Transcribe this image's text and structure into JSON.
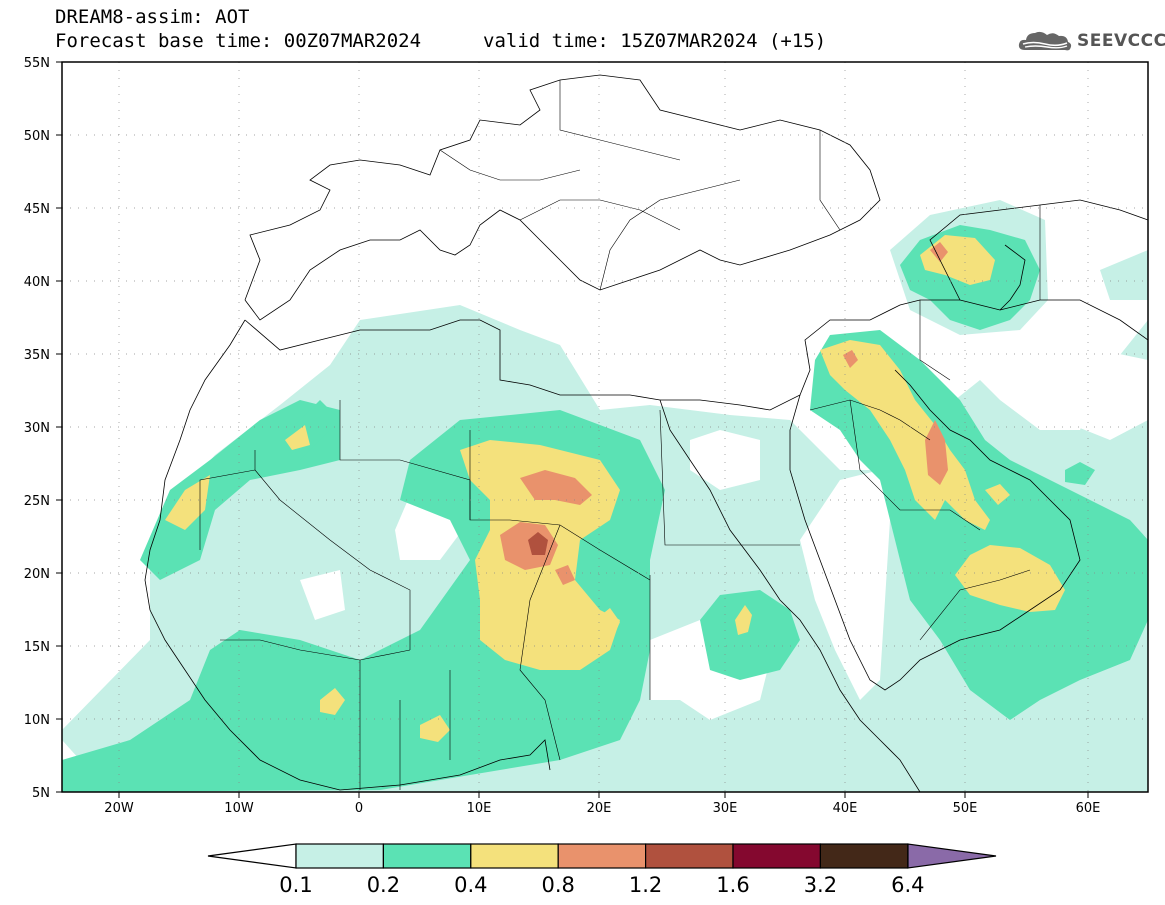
{
  "title": {
    "model_line": "DREAM8-assim: AOT",
    "base_line": "Forecast base time: 00Z07MAR2024",
    "valid_line": "valid time: 15Z07MAR2024 (+15)"
  },
  "logo": {
    "text": "SEEVCCC",
    "icon": "cloud-icon"
  },
  "map": {
    "lat_range": [
      5,
      55
    ],
    "lon_range": [
      -25,
      65
    ],
    "lat_labels": [
      "55N",
      "50N",
      "45N",
      "40N",
      "35N",
      "30N",
      "25N",
      "20N",
      "15N",
      "10N",
      "5N"
    ],
    "lon_labels": [
      "20W",
      "10W",
      "0",
      "10E",
      "20E",
      "30E",
      "40E",
      "50E",
      "60E"
    ],
    "grid": "dotted",
    "field": "Aerosol optical thickness"
  },
  "colorbar": {
    "labels": [
      "0.1",
      "0.2",
      "0.4",
      "0.8",
      "1.2",
      "1.6",
      "3.2",
      "6.4"
    ],
    "colors": [
      "#ffffff",
      "#c6f0e6",
      "#5be2b4",
      "#f4e17c",
      "#e9926c",
      "#b0513e",
      "#84082f",
      "#432818",
      "#8a6aa8"
    ]
  },
  "colors": {
    "c1": "#c6f0e6",
    "c2": "#5be2b4",
    "c3": "#f4e17c",
    "c4": "#e9926c",
    "c5": "#b0513e",
    "c6": "#84082f"
  }
}
